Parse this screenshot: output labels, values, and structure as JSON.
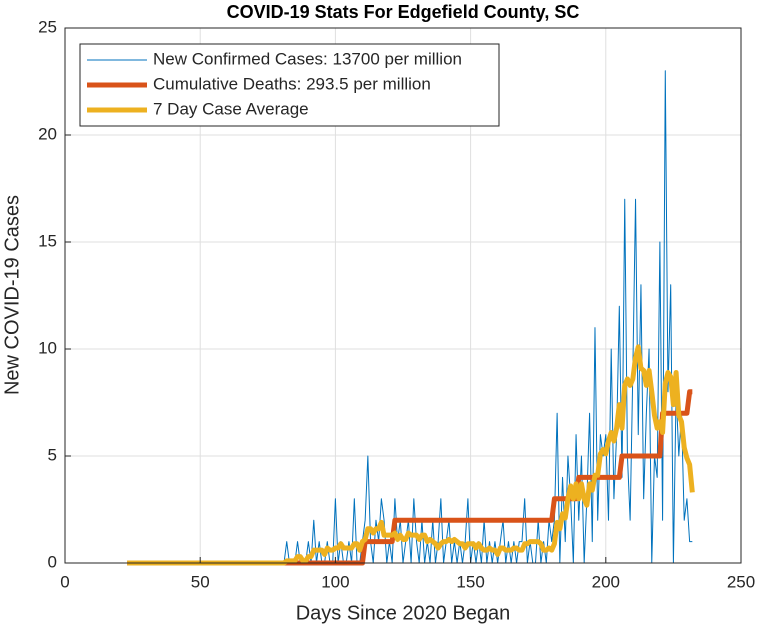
{
  "chart_data": {
    "type": "line",
    "title": "COVID-19 Stats For Edgefield County, SC",
    "xlabel": "Days Since 2020 Began",
    "ylabel": "New COVID-19 Cases",
    "xlim": [
      0,
      250
    ],
    "xticks": [
      0,
      50,
      100,
      150,
      200,
      250
    ],
    "ylim": [
      0,
      25
    ],
    "yticks": [
      0,
      5,
      10,
      15,
      20,
      25
    ],
    "grid": true,
    "legend": "upper left",
    "x": [
      23,
      24,
      25,
      26,
      27,
      28,
      29,
      30,
      31,
      32,
      33,
      34,
      35,
      36,
      37,
      38,
      39,
      40,
      41,
      42,
      43,
      44,
      45,
      46,
      47,
      48,
      49,
      50,
      51,
      52,
      53,
      54,
      55,
      56,
      57,
      58,
      59,
      60,
      61,
      62,
      63,
      64,
      65,
      66,
      67,
      68,
      69,
      70,
      71,
      72,
      73,
      74,
      75,
      76,
      77,
      78,
      79,
      80,
      81,
      82,
      83,
      84,
      85,
      86,
      87,
      88,
      89,
      90,
      91,
      92,
      93,
      94,
      95,
      96,
      97,
      98,
      99,
      100,
      101,
      102,
      103,
      104,
      105,
      106,
      107,
      108,
      109,
      110,
      111,
      112,
      113,
      114,
      115,
      116,
      117,
      118,
      119,
      120,
      121,
      122,
      123,
      124,
      125,
      126,
      127,
      128,
      129,
      130,
      131,
      132,
      133,
      134,
      135,
      136,
      137,
      138,
      139,
      140,
      141,
      142,
      143,
      144,
      145,
      146,
      147,
      148,
      149,
      150,
      151,
      152,
      153,
      154,
      155,
      156,
      157,
      158,
      159,
      160,
      161,
      162,
      163,
      164,
      165,
      166,
      167,
      168,
      169,
      170,
      171,
      172,
      173,
      174,
      175,
      176,
      177,
      178,
      179,
      180,
      181,
      182,
      183,
      184,
      185,
      186,
      187,
      188,
      189,
      190,
      191,
      192,
      193,
      194,
      195,
      196,
      197,
      198,
      199,
      200,
      201,
      202,
      203,
      204,
      205,
      206,
      207,
      208,
      209,
      210,
      211,
      212,
      213,
      214,
      215,
      216,
      217,
      218,
      219,
      220,
      221,
      222,
      223,
      224,
      225,
      226,
      227,
      228,
      229,
      230,
      231,
      232
    ],
    "series": [
      {
        "name": "New Confirmed Cases: 13700 per million",
        "color": "#0072BD",
        "width": 1,
        "values": [
          0,
          0,
          0,
          0,
          0,
          0,
          0,
          0,
          0,
          0,
          0,
          0,
          0,
          0,
          0,
          0,
          0,
          0,
          0,
          0,
          0,
          0,
          0,
          0,
          0,
          0,
          0,
          0,
          0,
          0,
          0,
          0,
          0,
          0,
          0,
          0,
          0,
          0,
          0,
          0,
          0,
          0,
          0,
          0,
          0,
          0,
          0,
          0,
          0,
          0,
          0,
          0,
          0,
          0,
          0,
          0,
          0,
          0,
          0,
          1,
          0,
          0,
          0,
          1,
          0,
          0,
          0,
          1,
          0,
          2,
          0,
          1,
          0,
          0,
          1,
          0,
          0,
          3,
          0,
          1,
          0,
          0,
          1,
          0,
          3,
          0,
          0,
          1,
          2,
          5,
          1,
          0,
          2,
          1,
          3,
          2,
          0,
          1,
          0,
          3,
          1,
          2,
          0,
          1,
          2,
          0,
          3,
          1,
          0,
          2,
          0,
          1,
          0,
          2,
          0,
          1,
          3,
          0,
          1,
          2,
          0,
          1,
          0,
          1,
          0,
          1,
          3,
          0,
          1,
          0,
          1,
          0,
          2,
          0,
          1,
          0,
          1,
          0,
          1,
          2,
          0,
          1,
          0,
          1,
          0,
          1,
          1,
          3,
          0,
          1,
          0,
          0,
          2,
          0,
          1,
          0,
          2,
          1,
          2,
          7,
          0,
          4,
          1,
          5,
          3,
          0,
          6,
          2,
          5,
          0,
          3,
          7,
          1,
          11,
          2,
          6,
          5,
          6,
          2,
          10,
          3,
          6,
          12,
          4,
          17,
          5,
          2,
          9,
          17,
          6,
          13,
          3,
          7,
          10,
          0,
          5,
          4,
          15,
          2,
          23,
          8,
          13,
          0,
          8,
          5,
          7,
          2,
          3,
          1,
          1
        ]
      },
      {
        "name": "Cumulative Deaths: 293.5 per million",
        "color": "#D95319",
        "width": 5,
        "values": [
          0,
          0,
          0,
          0,
          0,
          0,
          0,
          0,
          0,
          0,
          0,
          0,
          0,
          0,
          0,
          0,
          0,
          0,
          0,
          0,
          0,
          0,
          0,
          0,
          0,
          0,
          0,
          0,
          0,
          0,
          0,
          0,
          0,
          0,
          0,
          0,
          0,
          0,
          0,
          0,
          0,
          0,
          0,
          0,
          0,
          0,
          0,
          0,
          0,
          0,
          0,
          0,
          0,
          0,
          0,
          0,
          0,
          0,
          0,
          0,
          0,
          0,
          0,
          0,
          0,
          0,
          0,
          0,
          0,
          0,
          0,
          0,
          0,
          0,
          0,
          0,
          0,
          0,
          0,
          0,
          0,
          0,
          0,
          0,
          0,
          0,
          0,
          0,
          1,
          1,
          1,
          1,
          1,
          1,
          1,
          1,
          1,
          1,
          1,
          2,
          2,
          2,
          2,
          2,
          2,
          2,
          2,
          2,
          2,
          2,
          2,
          2,
          2,
          2,
          2,
          2,
          2,
          2,
          2,
          2,
          2,
          2,
          2,
          2,
          2,
          2,
          2,
          2,
          2,
          2,
          2,
          2,
          2,
          2,
          2,
          2,
          2,
          2,
          2,
          2,
          2,
          2,
          2,
          2,
          2,
          2,
          2,
          2,
          2,
          2,
          2,
          2,
          2,
          2,
          2,
          2,
          2,
          2,
          3,
          3,
          3,
          3,
          3,
          3,
          3,
          3,
          3,
          4,
          4,
          4,
          4,
          4,
          4,
          4,
          4,
          4,
          4,
          4,
          4,
          4,
          4,
          4,
          4,
          5,
          5,
          5,
          5,
          5,
          5,
          5,
          5,
          5,
          5,
          5,
          5,
          5,
          5,
          5,
          7,
          7,
          7,
          7,
          7,
          7,
          7,
          7,
          7,
          7,
          8,
          8
        ]
      },
      {
        "name": "7 Day Case Average",
        "color": "#EDB120",
        "width": 5,
        "values": [
          0,
          0,
          0,
          0,
          0,
          0,
          0,
          0,
          0,
          0,
          0,
          0,
          0,
          0,
          0,
          0,
          0,
          0,
          0,
          0,
          0,
          0,
          0,
          0,
          0,
          0,
          0,
          0,
          0,
          0,
          0,
          0,
          0,
          0,
          0,
          0,
          0,
          0,
          0,
          0,
          0,
          0,
          0,
          0,
          0,
          0,
          0,
          0,
          0,
          0,
          0,
          0,
          0,
          0,
          0,
          0,
          0,
          0,
          0,
          0.1,
          0.1,
          0.1,
          0.1,
          0.3,
          0.3,
          0.1,
          0.1,
          0.3,
          0.3,
          0.6,
          0.6,
          0.6,
          0.6,
          0.4,
          0.7,
          0.6,
          0.6,
          0.7,
          0.7,
          0.9,
          0.7,
          0.7,
          0.7,
          0.7,
          0.9,
          0.9,
          0.6,
          1.0,
          1.1,
          1.6,
          1.6,
          1.4,
          1.6,
          1.6,
          1.9,
          1.3,
          1.3,
          1.3,
          1.3,
          1.4,
          1.1,
          1.3,
          1.1,
          1.1,
          1.4,
          1.3,
          1.3,
          1.3,
          1.1,
          1.3,
          1.3,
          1.0,
          1.1,
          1.0,
          0.9,
          0.7,
          0.9,
          1.0,
          1.0,
          1.1,
          1.0,
          1.1,
          1.0,
          0.9,
          0.9,
          0.7,
          0.9,
          0.9,
          0.9,
          0.7,
          0.9,
          0.7,
          0.6,
          0.6,
          0.7,
          0.6,
          0.6,
          0.4,
          0.7,
          0.7,
          0.6,
          0.6,
          0.6,
          0.7,
          0.7,
          0.6,
          0.6,
          0.9,
          0.9,
          1.0,
          1.0,
          1.0,
          1.0,
          0.9,
          0.6,
          0.6,
          0.7,
          0.6,
          0.9,
          1.9,
          1.6,
          2.3,
          2.1,
          3.0,
          3.6,
          3.0,
          3.7,
          3.0,
          3.7,
          3.0,
          2.7,
          3.7,
          3.4,
          4.1,
          4.1,
          5.1,
          5.3,
          5.1,
          5.7,
          6.1,
          5.7,
          6.3,
          7.4,
          6.3,
          8.3,
          8.6,
          8.3,
          8.6,
          9.6,
          10.1,
          9.1,
          9.0,
          8.3,
          9.0,
          8.0,
          6.9,
          6.3,
          6.6,
          6.1,
          8.4,
          8.9,
          8.7,
          7.4,
          8.9,
          6.9,
          6.6,
          5.4,
          4.9,
          4.6,
          3.3
        ]
      }
    ]
  }
}
